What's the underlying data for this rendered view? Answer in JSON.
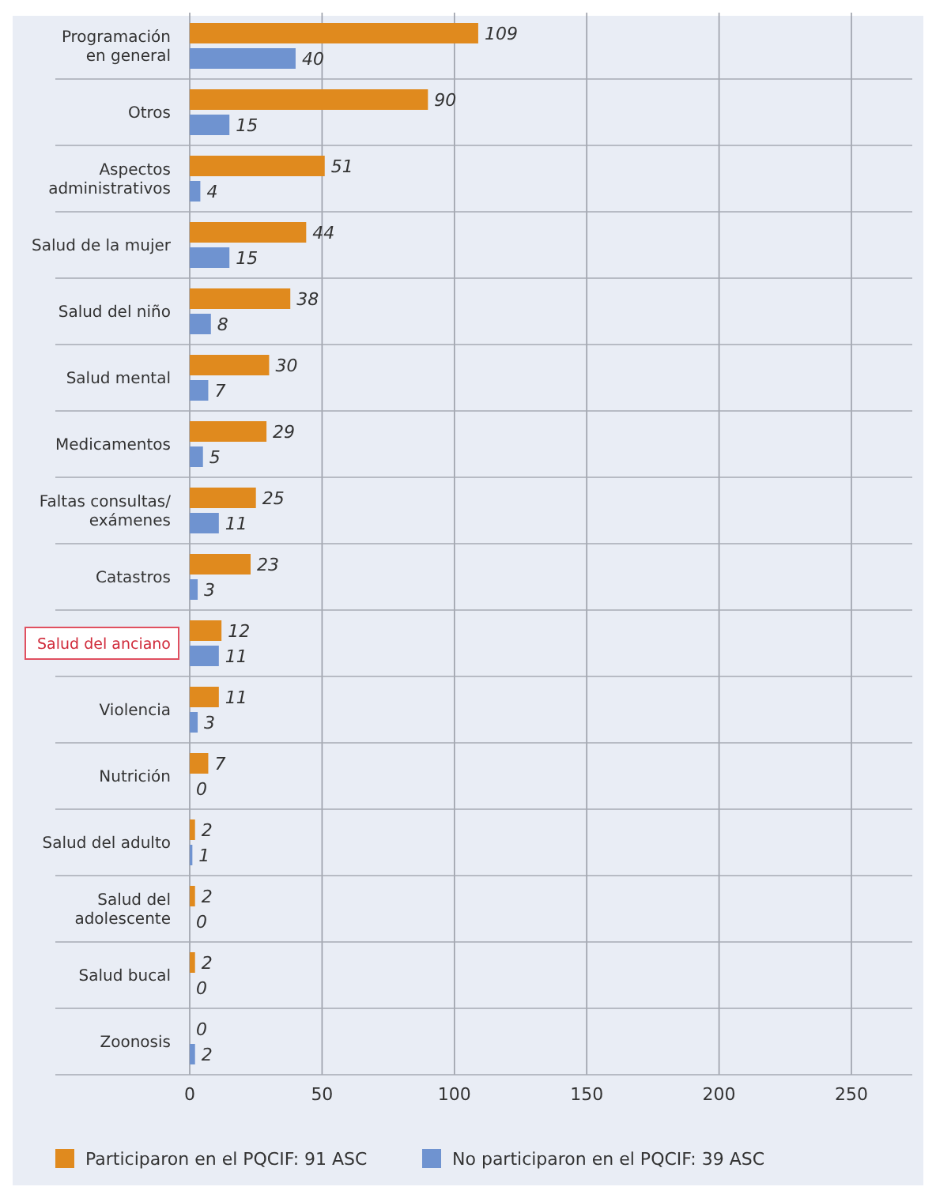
{
  "chart_data": {
    "type": "bar",
    "orientation": "horizontal",
    "categories": [
      "Programación\nen general",
      "Otros",
      "Aspectos\nadministrativos",
      "Salud de la mujer",
      "Salud del niño",
      "Salud mental",
      "Medicamentos",
      "Faltas consultas/\nexámenes",
      "Catastros",
      "Salud del anciano",
      "Violencia",
      "Nutrición",
      "Salud del adulto",
      "Salud del\nadolescente",
      "Salud bucal",
      "Zoonosis"
    ],
    "series": [
      {
        "name": "Participaron en el PQCIF: 91 ASC",
        "color": "#e08a1e",
        "values": [
          109,
          90,
          51,
          44,
          38,
          30,
          29,
          25,
          23,
          12,
          11,
          7,
          2,
          2,
          2,
          0
        ]
      },
      {
        "name": "No participaron en el PQCIF: 39 ASC",
        "color": "#6f93d0",
        "values": [
          40,
          15,
          4,
          15,
          8,
          7,
          5,
          11,
          3,
          11,
          3,
          0,
          1,
          0,
          0,
          2
        ]
      }
    ],
    "xlim": [
      0,
      273
    ],
    "xticks": [
      0,
      50,
      100,
      150,
      200,
      250
    ],
    "grid": "x",
    "data_labels": true,
    "legend": "bottom"
  }
}
